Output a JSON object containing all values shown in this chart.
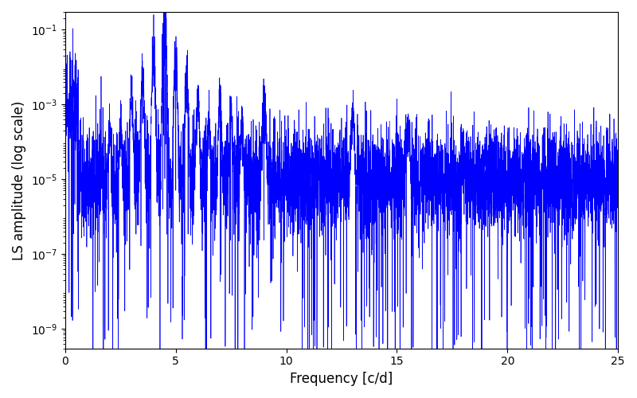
{
  "title": "",
  "xlabel": "Frequency [c/d]",
  "ylabel": "LS amplitude (log scale)",
  "xlim": [
    0,
    25
  ],
  "ylim": [
    3e-10,
    0.3
  ],
  "line_color": "#0000ff",
  "line_width": 0.5,
  "figsize": [
    8.0,
    5.0
  ],
  "dpi": 100,
  "main_peak_freq": 4.5,
  "main_peak_amp": 0.28,
  "noise_baseline": 1e-05,
  "n_points": 6000,
  "seed": 12345
}
